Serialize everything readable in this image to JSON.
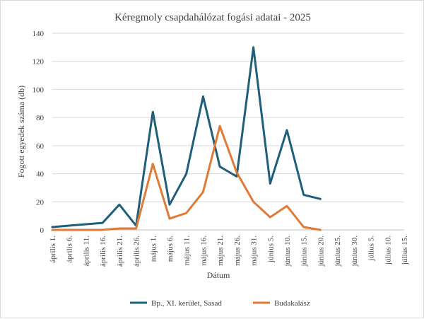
{
  "chart_data": {
    "type": "line",
    "title": "Kéregmoly csapdahálózat fogási adatai - 2025",
    "xlabel": "Dátum",
    "ylabel": "Fogott egyedek száma (db)",
    "ylim": [
      0,
      140
    ],
    "yticks": [
      0,
      20,
      40,
      60,
      80,
      100,
      120,
      140
    ],
    "grid": true,
    "legend": "bottom",
    "categories": [
      "április 1.",
      "április 6.",
      "április 11.",
      "április 16.",
      "április 21.",
      "április 26.",
      "május 1.",
      "május 6.",
      "május 11.",
      "május 16.",
      "május 21.",
      "május 26.",
      "május 31.",
      "június 5.",
      "június 10.",
      "június 15.",
      "június 20.",
      "június 25.",
      "június 30.",
      "július 5.",
      "július 10.",
      "július 15."
    ],
    "series": [
      {
        "name": "Bp., XI. kerület, Sasad",
        "color": "#1f5f7a",
        "points": [
          [
            0,
            2
          ],
          [
            1,
            3
          ],
          [
            3,
            5
          ],
          [
            4,
            18
          ],
          [
            5,
            3
          ],
          [
            6,
            84
          ],
          [
            7,
            18
          ],
          [
            8,
            40
          ],
          [
            9,
            95
          ],
          [
            10,
            45
          ],
          [
            11,
            38
          ],
          [
            12,
            130
          ],
          [
            13,
            33
          ],
          [
            14,
            71
          ],
          [
            15,
            25
          ],
          [
            16,
            22
          ]
        ]
      },
      {
        "name": "Budakalász",
        "color": "#e07a38",
        "points": [
          [
            0,
            0
          ],
          [
            3,
            0
          ],
          [
            4,
            1
          ],
          [
            5,
            1
          ],
          [
            6,
            47
          ],
          [
            7,
            8
          ],
          [
            8,
            12
          ],
          [
            9,
            27
          ],
          [
            10,
            74
          ],
          [
            11,
            41
          ],
          [
            12,
            20
          ],
          [
            13,
            9
          ],
          [
            14,
            17
          ],
          [
            15,
            2
          ],
          [
            16,
            0
          ]
        ]
      }
    ]
  }
}
